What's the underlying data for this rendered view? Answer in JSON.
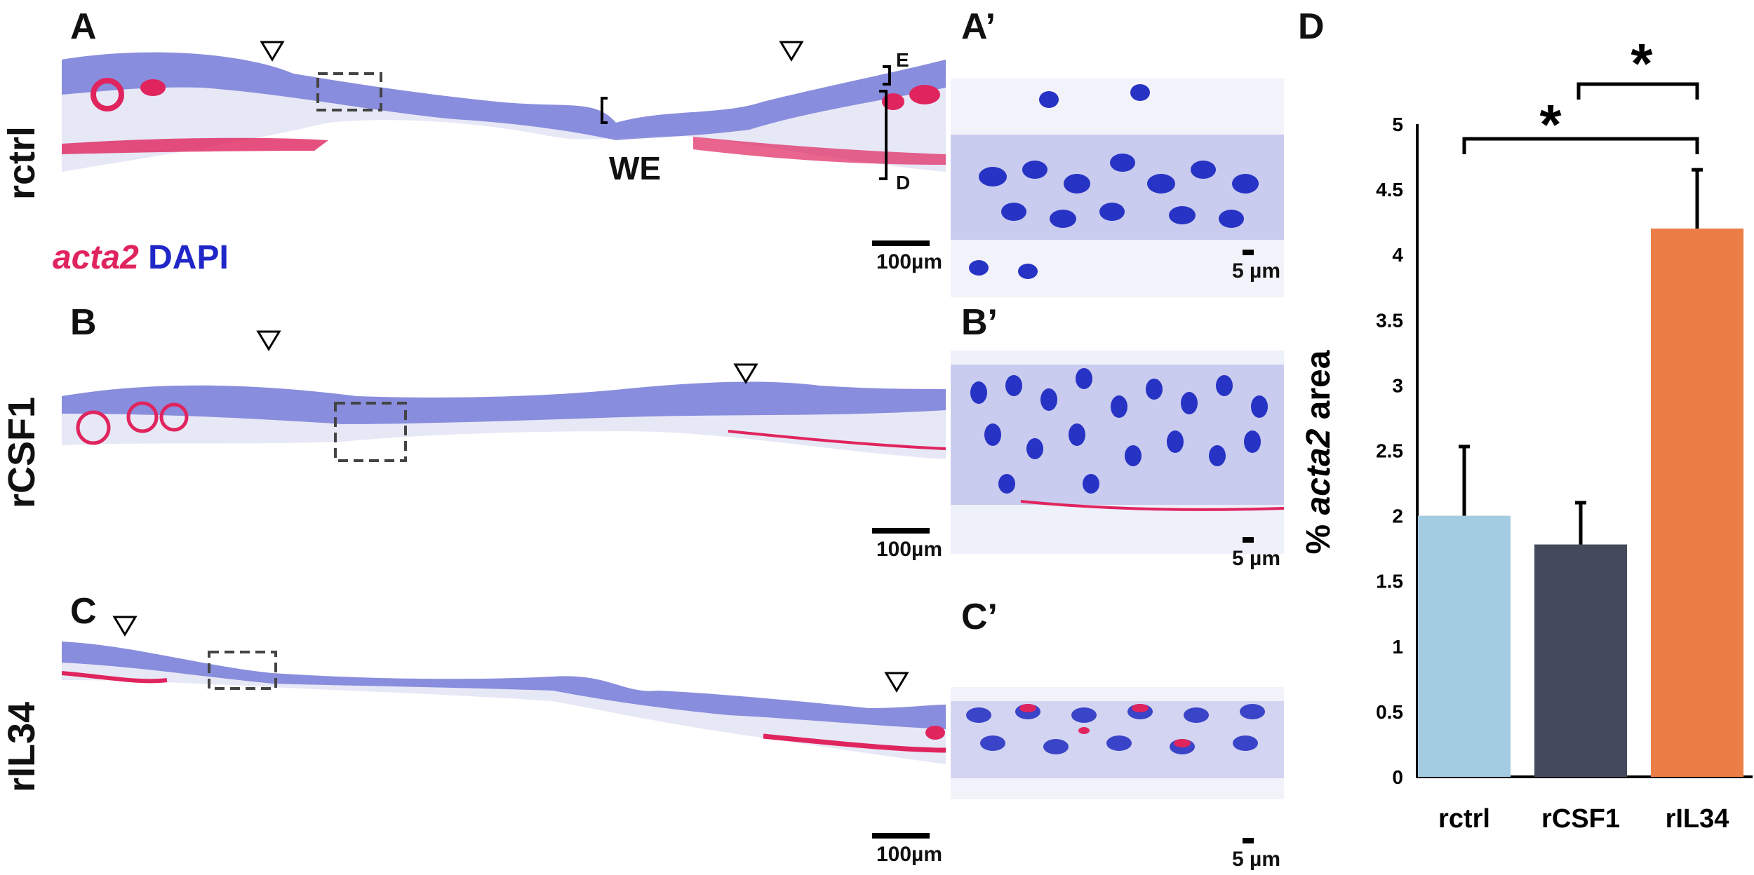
{
  "panels": {
    "A": "A",
    "A_prime": "A’",
    "B": "B",
    "B_prime": "B’",
    "C": "C",
    "C_prime": "C’",
    "D": "D"
  },
  "row_labels": [
    "rctrl",
    "rCSF1",
    "rIL34"
  ],
  "stain_legend": {
    "acta2": "acta2",
    "dapi": "DAPI"
  },
  "annotations": {
    "we": "WE",
    "epidermis": "E",
    "dermis": "D"
  },
  "scalebars": {
    "large": "100µm",
    "small": "5 µm"
  },
  "colors": {
    "rctrl": "#a3cbe1",
    "rCSF1": "#444a5b",
    "rIL34": "#ed7d46",
    "acta2": "#e0245e",
    "dapi": "#1f27c9"
  },
  "chart_data": {
    "type": "bar",
    "categories": [
      "rctrl",
      "rCSF1",
      "rIL34"
    ],
    "values": [
      2.0,
      1.78,
      4.2
    ],
    "errors": [
      0.53,
      0.32,
      0.45
    ],
    "ylabel_prefix": "% ",
    "ylabel_italic": "acta2",
    "ylabel_suffix": " area",
    "ylim": [
      0,
      5
    ],
    "yticks": [
      "0",
      "0.5",
      "1",
      "1.5",
      "2",
      "2.5",
      "3",
      "3.5",
      "4",
      "4.5",
      "5"
    ],
    "significance": [
      {
        "from": "rctrl",
        "to": "rIL34",
        "label": "*"
      },
      {
        "from": "rCSF1",
        "to": "rIL34",
        "label": "*"
      }
    ],
    "grid": false,
    "legend": "none"
  }
}
